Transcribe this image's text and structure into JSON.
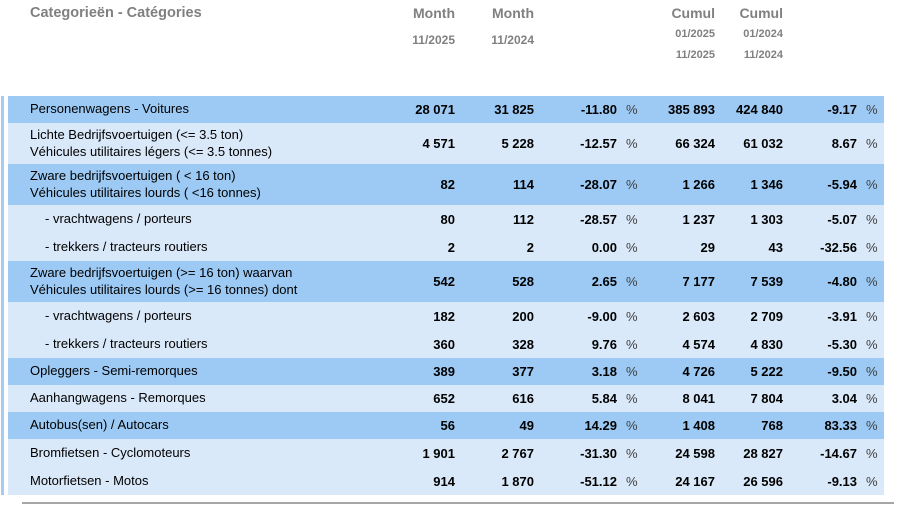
{
  "header": {
    "category_label": "Categorieën - Catégories",
    "columns": [
      {
        "title": "Month",
        "lines": [
          "11/2025"
        ]
      },
      {
        "title": "Month",
        "lines": [
          "11/2024"
        ]
      },
      {
        "title": "Cumul",
        "lines": [
          "01/2025",
          "11/2025"
        ]
      },
      {
        "title": "Cumul",
        "lines": [
          "01/2024",
          "11/2024"
        ]
      }
    ]
  },
  "table": {
    "percent_sign": "%",
    "zones": [
      {
        "shade": "dark",
        "rows": [
          {
            "label_lines": [
              "Personenwagens - Voitures"
            ],
            "indent": false,
            "month_current": "28 071",
            "month_previous": "31 825",
            "month_change_pct": "-11.80",
            "cumul_current": "385 893",
            "cumul_previous": "424 840",
            "cumul_change_pct": "-9.17"
          }
        ]
      },
      {
        "shade": "light",
        "rows": [
          {
            "label_lines": [
              "Lichte Bedrijfsvoertuigen (<= 3.5 ton)",
              "Véhicules utilitaires légers (<= 3.5 tonnes)"
            ],
            "indent": false,
            "month_current": "4 571",
            "month_previous": "5 228",
            "month_change_pct": "-12.57",
            "cumul_current": "66 324",
            "cumul_previous": "61 032",
            "cumul_change_pct": "8.67"
          }
        ]
      },
      {
        "shade": "dark",
        "rows": [
          {
            "label_lines": [
              "Zware bedrijfsvoertuigen ( < 16 ton)",
              "Véhicules utilitaires lourds ( <16 tonnes)"
            ],
            "indent": false,
            "month_current": "82",
            "month_previous": "114",
            "month_change_pct": "-28.07",
            "cumul_current": "1 266",
            "cumul_previous": "1 346",
            "cumul_change_pct": "-5.94"
          }
        ]
      },
      {
        "shade": "light",
        "rows": [
          {
            "label_lines": [
              "- vrachtwagens / porteurs"
            ],
            "indent": true,
            "month_current": "80",
            "month_previous": "112",
            "month_change_pct": "-28.57",
            "cumul_current": "1 237",
            "cumul_previous": "1 303",
            "cumul_change_pct": "-5.07"
          },
          {
            "label_lines": [
              "- trekkers / tracteurs routiers"
            ],
            "indent": true,
            "month_current": "2",
            "month_previous": "2",
            "month_change_pct": "0.00",
            "cumul_current": "29",
            "cumul_previous": "43",
            "cumul_change_pct": "-32.56"
          }
        ]
      },
      {
        "shade": "dark",
        "rows": [
          {
            "label_lines": [
              "Zware bedrijfsvoertuigen (>= 16 ton) waarvan",
              "Véhicules utilitaires lourds (>= 16 tonnes) dont"
            ],
            "indent": false,
            "month_current": "542",
            "month_previous": "528",
            "month_change_pct": "2.65",
            "cumul_current": "7 177",
            "cumul_previous": "7 539",
            "cumul_change_pct": "-4.80"
          }
        ]
      },
      {
        "shade": "light",
        "rows": [
          {
            "label_lines": [
              "- vrachtwagens / porteurs"
            ],
            "indent": true,
            "month_current": "182",
            "month_previous": "200",
            "month_change_pct": "-9.00",
            "cumul_current": "2 603",
            "cumul_previous": "2 709",
            "cumul_change_pct": "-3.91"
          },
          {
            "label_lines": [
              "- trekkers / tracteurs routiers"
            ],
            "indent": true,
            "month_current": "360",
            "month_previous": "328",
            "month_change_pct": "9.76",
            "cumul_current": "4 574",
            "cumul_previous": "4 830",
            "cumul_change_pct": "-5.30"
          }
        ]
      },
      {
        "shade": "dark",
        "rows": [
          {
            "label_lines": [
              "Opleggers - Semi-remorques"
            ],
            "indent": false,
            "month_current": "389",
            "month_previous": "377",
            "month_change_pct": "3.18",
            "cumul_current": "4 726",
            "cumul_previous": "5 222",
            "cumul_change_pct": "-9.50"
          }
        ]
      },
      {
        "shade": "light",
        "rows": [
          {
            "label_lines": [
              "Aanhangwagens - Remorques"
            ],
            "indent": false,
            "month_current": "652",
            "month_previous": "616",
            "month_change_pct": "5.84",
            "cumul_current": "8 041",
            "cumul_previous": "7 804",
            "cumul_change_pct": "3.04"
          }
        ]
      },
      {
        "shade": "dark",
        "rows": [
          {
            "label_lines": [
              "Autobus(sen) / Autocars"
            ],
            "indent": false,
            "month_current": "56",
            "month_previous": "49",
            "month_change_pct": "14.29",
            "cumul_current": "1 408",
            "cumul_previous": "768",
            "cumul_change_pct": "83.33"
          }
        ]
      },
      {
        "shade": "light",
        "rows": [
          {
            "label_lines": [
              "Bromfietsen - Cyclomoteurs"
            ],
            "indent": false,
            "month_current": "1 901",
            "month_previous": "2 767",
            "month_change_pct": "-31.30",
            "cumul_current": "24 598",
            "cumul_previous": "28 827",
            "cumul_change_pct": "-14.67"
          },
          {
            "label_lines": [
              "Motorfietsen - Motos"
            ],
            "indent": false,
            "month_current": "914",
            "month_previous": "1 870",
            "month_change_pct": "-51.12",
            "cumul_current": "24 167",
            "cumul_previous": "26 596",
            "cumul_change_pct": "-9.13"
          }
        ]
      }
    ]
  },
  "colors": {
    "zone_dark": "#9CCAF4",
    "zone_light": "#DAE9F9",
    "header_text": "#808080",
    "left_strip": "#A5CCF0",
    "bottom_rule": "#A6A6A6"
  }
}
